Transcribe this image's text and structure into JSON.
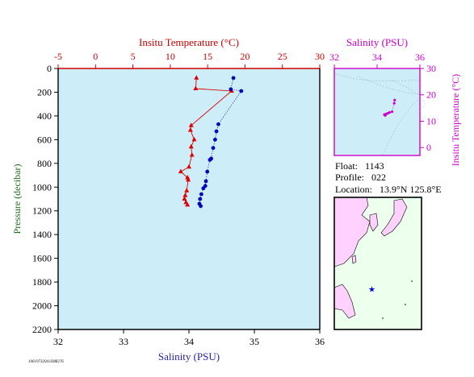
{
  "colors": {
    "plot_bg": "#cdeef9",
    "temperature": "#e00000",
    "salinity": "#0000c0",
    "inset": "#cc00cc",
    "temp_axis": "#d00000",
    "sal_axis": "#2222aa",
    "map_land": "#ffd1ff",
    "map_sea": "#edffed"
  },
  "info": {
    "float_label": "Float:",
    "float_value": "1143",
    "profile_label": "Profile:",
    "profile_value": "022",
    "location_label": "Location:",
    "location_value": "13.9°N  125.8°E"
  },
  "footer_id": "1061973204.0388276",
  "chart_data": [
    {
      "type": "line",
      "top_axis_label": "Insitu Temperature (°C)",
      "bottom_axis_label": "Salinity (PSU)",
      "ylabel": "Pressure (decibar)",
      "temp_lim": [
        -5,
        30
      ],
      "temp_ticks": [
        "-5",
        "0",
        "5",
        "10",
        "15",
        "20",
        "25",
        "30"
      ],
      "sal_lim": [
        32,
        36
      ],
      "sal_ticks": [
        "32",
        "33",
        "34",
        "35",
        "36"
      ],
      "ylim": [
        0,
        2200
      ],
      "y_inverted": true,
      "y_ticks": [
        "0",
        "200",
        "400",
        "600",
        "800",
        "1000",
        "1200",
        "1400",
        "1600",
        "1800",
        "2000",
        "2200"
      ],
      "series": [
        {
          "axis": "temperature",
          "marker": "triangle",
          "points": [
            {
              "p": 80,
              "v": 13.5
            },
            {
              "p": 170,
              "v": 13.4
            },
            {
              "p": 190,
              "v": 18.2
            },
            {
              "p": 480,
              "v": 12.8
            },
            {
              "p": 520,
              "v": 12.7
            },
            {
              "p": 600,
              "v": 13.2
            },
            {
              "p": 660,
              "v": 12.8
            },
            {
              "p": 730,
              "v": 12.9
            },
            {
              "p": 830,
              "v": 12.5
            },
            {
              "p": 870,
              "v": 11.4
            },
            {
              "p": 920,
              "v": 12.3
            },
            {
              "p": 940,
              "v": 12.4
            },
            {
              "p": 1030,
              "v": 12.2
            },
            {
              "p": 1070,
              "v": 12.0
            },
            {
              "p": 1100,
              "v": 11.9
            },
            {
              "p": 1130,
              "v": 12.1
            },
            {
              "p": 1150,
              "v": 12.3
            }
          ]
        },
        {
          "axis": "salinity",
          "marker": "circle",
          "points": [
            {
              "p": 80,
              "v": 34.68
            },
            {
              "p": 175,
              "v": 34.64
            },
            {
              "p": 190,
              "v": 34.8
            },
            {
              "p": 470,
              "v": 34.45
            },
            {
              "p": 530,
              "v": 34.42
            },
            {
              "p": 600,
              "v": 34.4
            },
            {
              "p": 670,
              "v": 34.37
            },
            {
              "p": 760,
              "v": 34.34
            },
            {
              "p": 770,
              "v": 34.32
            },
            {
              "p": 870,
              "v": 34.28
            },
            {
              "p": 950,
              "v": 34.26
            },
            {
              "p": 990,
              "v": 34.25
            },
            {
              "p": 1010,
              "v": 34.22
            },
            {
              "p": 1060,
              "v": 34.19
            },
            {
              "p": 1100,
              "v": 34.17
            },
            {
              "p": 1140,
              "v": 34.16
            },
            {
              "p": 1160,
              "v": 34.18
            }
          ]
        }
      ]
    },
    {
      "type": "scatter",
      "xlabel": "Salinity (PSU)",
      "ylabel": "Insitu Temperature (°C)",
      "xlim": [
        32,
        36
      ],
      "x_ticks": [
        "32",
        "34",
        "36"
      ],
      "ylim": [
        -3,
        30
      ],
      "y_ticks": [
        "0",
        "10",
        "20",
        "30"
      ],
      "points": [
        {
          "s": 34.34,
          "t": 12.5
        },
        {
          "s": 34.38,
          "t": 12.2
        },
        {
          "s": 34.42,
          "t": 12.7
        },
        {
          "s": 34.5,
          "t": 13.0
        },
        {
          "s": 34.58,
          "t": 13.3
        },
        {
          "s": 34.7,
          "t": 13.6
        },
        {
          "s": 34.8,
          "t": 16.8
        },
        {
          "s": 34.82,
          "t": 18.0
        }
      ]
    }
  ],
  "map": {
    "marker": {
      "lat": 13.9,
      "lon": 125.8
    }
  }
}
